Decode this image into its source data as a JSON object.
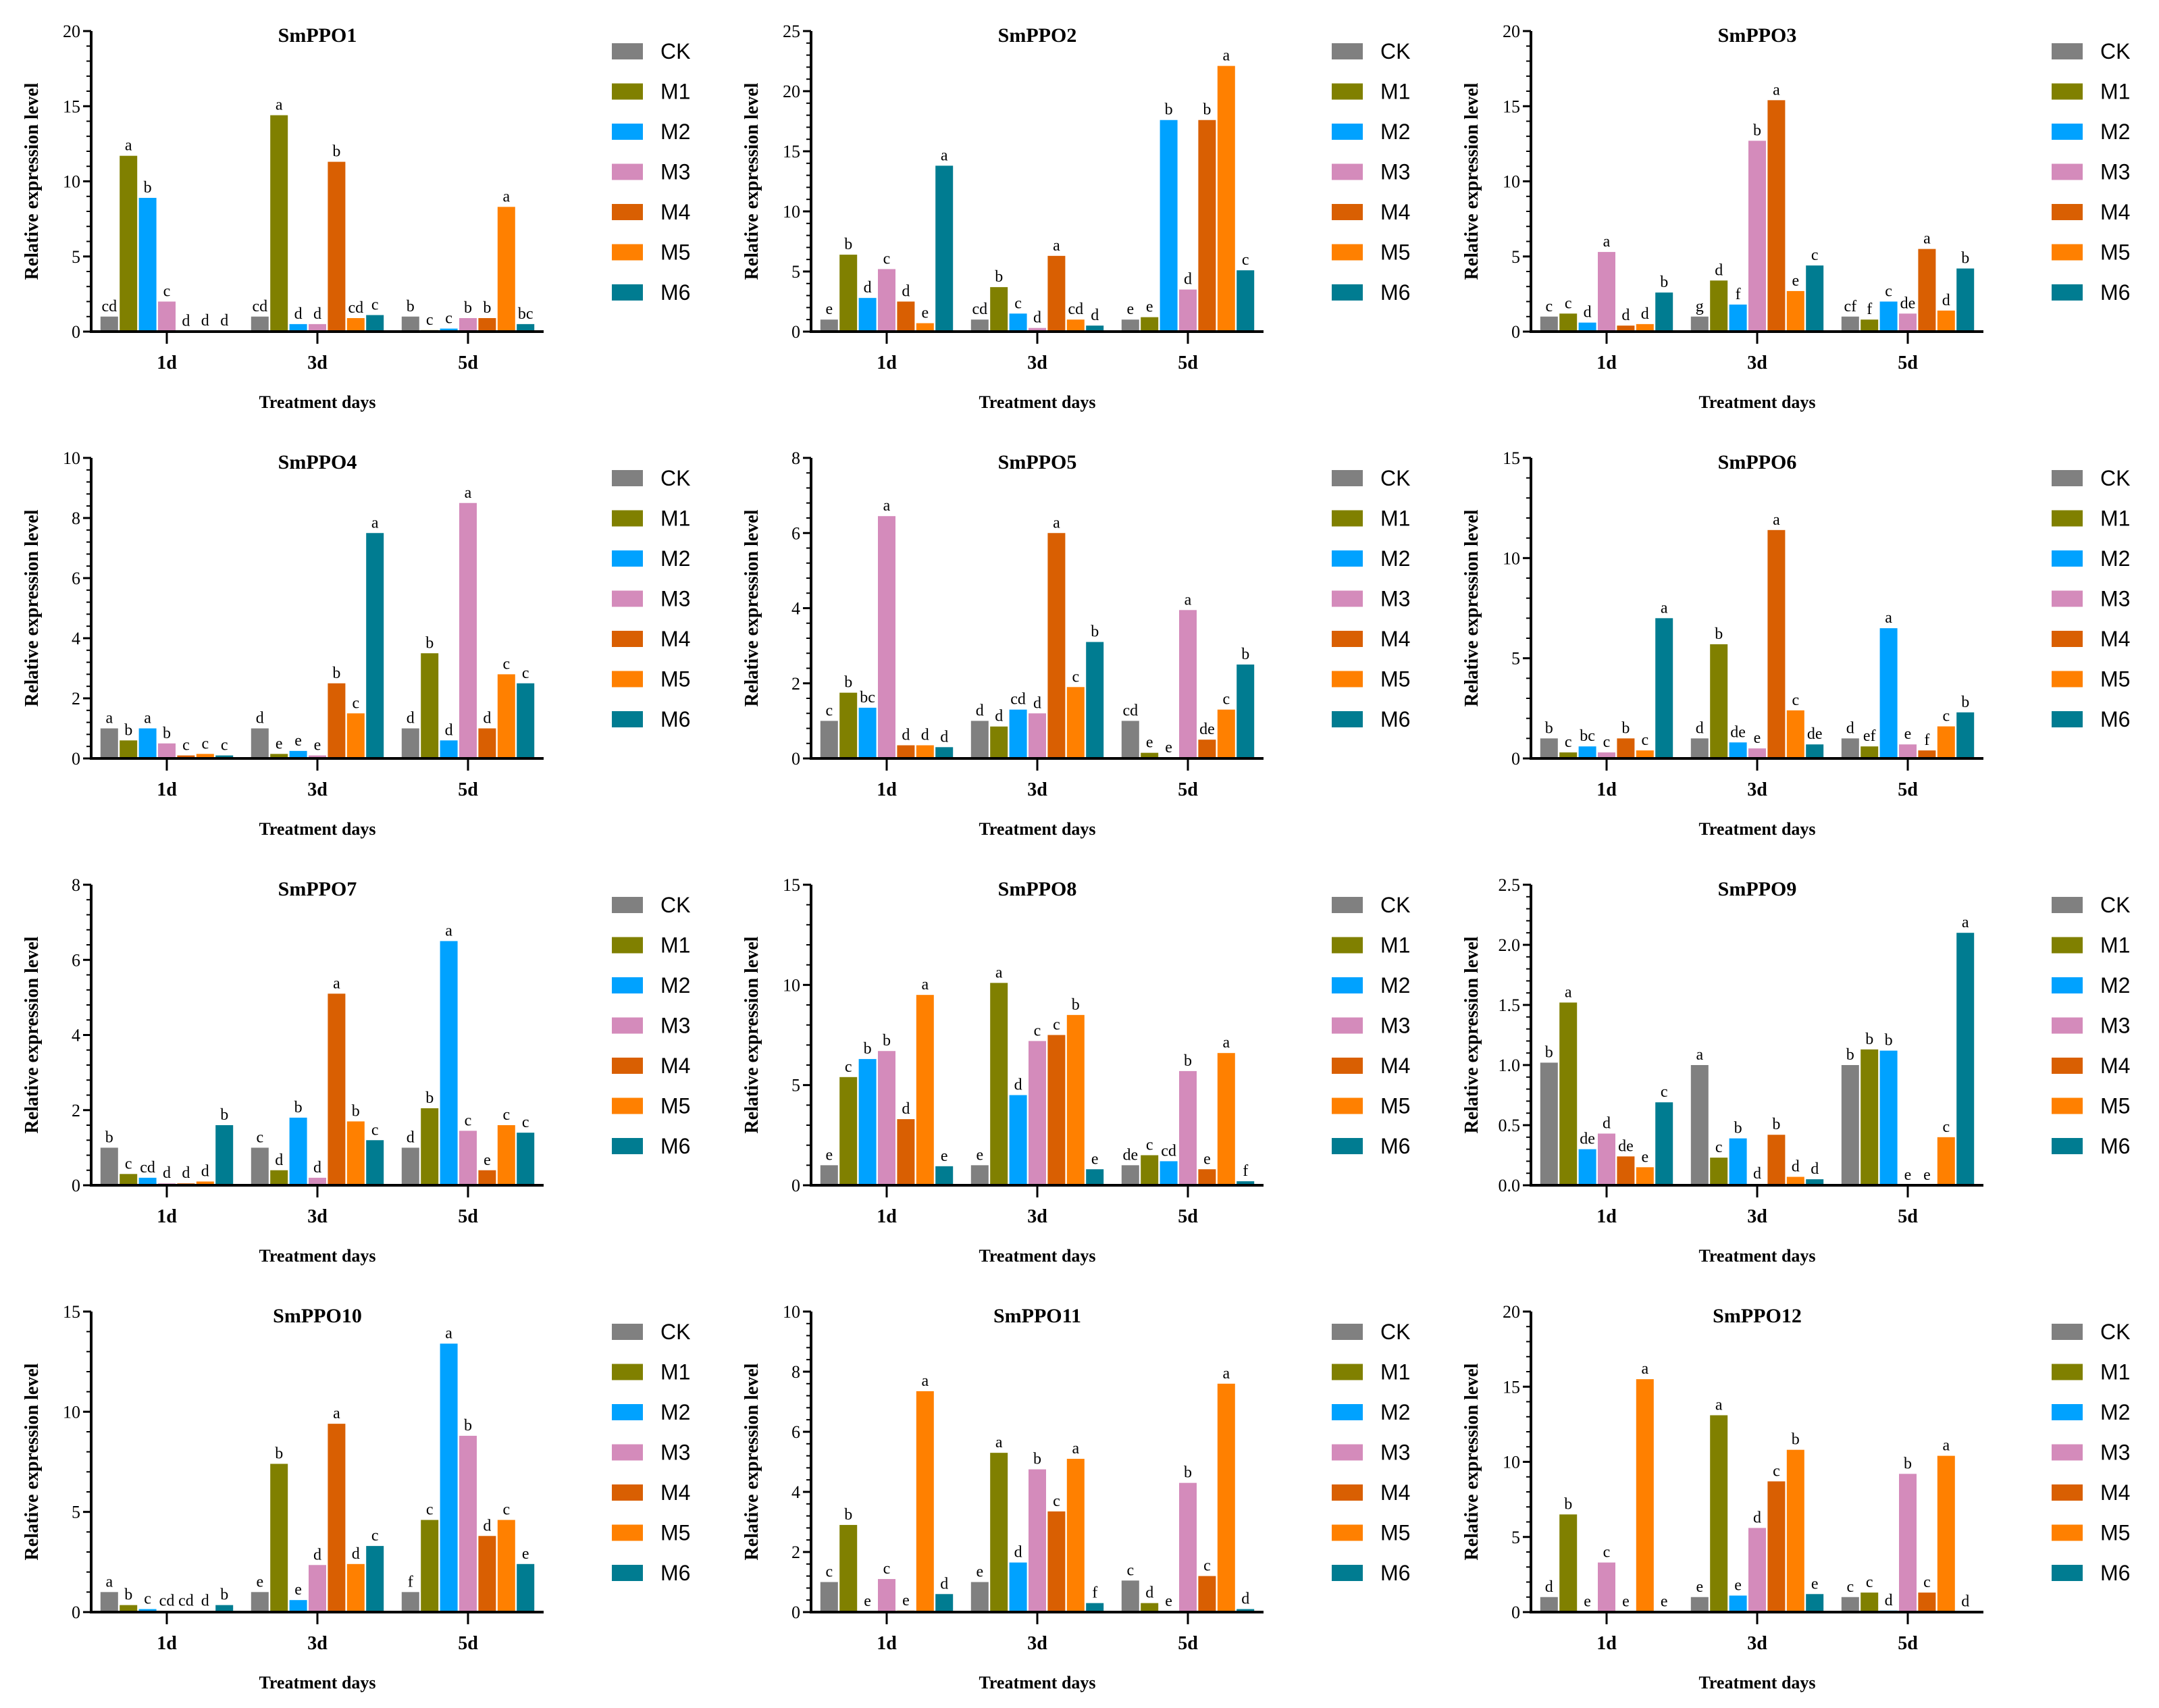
{
  "chart_data": {
    "type": "bar",
    "categories": [
      "1d",
      "3d",
      "5d"
    ],
    "series_names": [
      "CK",
      "M1",
      "M2",
      "M3",
      "M4",
      "M5",
      "M6"
    ],
    "colors": [
      "#808080",
      "#808000",
      "#00a2ff",
      "#d48bbb",
      "#d95f02",
      "#ff8000",
      "#007c91"
    ],
    "xlabel": "Treatment days",
    "ylabel": "Relative expression level",
    "panels": [
      {
        "title": "SmPPO1",
        "ylim": [
          0,
          20
        ],
        "ystep": 5,
        "values": [
          [
            1,
            11.7,
            8.9,
            2.0,
            0.02,
            0.05,
            0.05
          ],
          [
            1,
            14.4,
            0.5,
            0.5,
            11.3,
            0.9,
            1.1
          ],
          [
            1,
            0.1,
            0.2,
            0.9,
            0.9,
            8.3,
            0.5
          ]
        ],
        "letters": [
          [
            "cd",
            "a",
            "b",
            "c",
            "d",
            "d",
            "d"
          ],
          [
            "cd",
            "a",
            "d",
            "d",
            "b",
            "cd",
            "c"
          ],
          [
            "b",
            "c",
            "c",
            "b",
            "b",
            "a",
            "bc"
          ]
        ]
      },
      {
        "title": "SmPPO2",
        "ylim": [
          0,
          25
        ],
        "ystep": 5,
        "values": [
          [
            1,
            6.4,
            2.8,
            5.2,
            2.5,
            0.7,
            13.8
          ],
          [
            1,
            3.7,
            1.5,
            0.3,
            6.3,
            1.0,
            0.5
          ],
          [
            1,
            1.2,
            17.6,
            3.5,
            17.6,
            22.1,
            5.1
          ]
        ],
        "letters": [
          [
            "e",
            "b",
            "d",
            "c",
            "d",
            "e",
            "a"
          ],
          [
            "cd",
            "b",
            "c",
            "d",
            "a",
            "cd",
            "d"
          ],
          [
            "e",
            "e",
            "b",
            "d",
            "b",
            "a",
            "c"
          ]
        ]
      },
      {
        "title": "SmPPO3",
        "ylim": [
          0,
          20
        ],
        "ystep": 5,
        "values": [
          [
            1,
            1.2,
            0.6,
            5.3,
            0.4,
            0.5,
            2.6
          ],
          [
            1,
            3.4,
            1.8,
            12.7,
            15.4,
            2.7,
            4.4
          ],
          [
            1,
            0.8,
            2.0,
            1.2,
            5.5,
            1.4,
            4.2
          ]
        ],
        "letters": [
          [
            "c",
            "c",
            "d",
            "a",
            "d",
            "d",
            "b"
          ],
          [
            "g",
            "d",
            "f",
            "b",
            "a",
            "e",
            "c"
          ],
          [
            "cf",
            "f",
            "c",
            "de",
            "a",
            "d",
            "b"
          ]
        ]
      },
      {
        "title": "SmPPO4",
        "ylim": [
          0,
          10
        ],
        "ystep": 2,
        "values": [
          [
            1,
            0.6,
            1.0,
            0.5,
            0.1,
            0.15,
            0.1
          ],
          [
            1,
            0.15,
            0.25,
            0.1,
            2.5,
            1.5,
            7.5
          ],
          [
            1,
            3.5,
            0.6,
            8.5,
            1.0,
            2.8,
            2.5
          ]
        ],
        "letters": [
          [
            "a",
            "b",
            "a",
            "b",
            "c",
            "c",
            "c"
          ],
          [
            "d",
            "e",
            "e",
            "e",
            "b",
            "c",
            "a"
          ],
          [
            "d",
            "b",
            "d",
            "a",
            "d",
            "c",
            "c"
          ]
        ]
      },
      {
        "title": "SmPPO5",
        "ylim": [
          0,
          8
        ],
        "ystep": 2,
        "values": [
          [
            1,
            1.75,
            1.35,
            6.45,
            0.35,
            0.35,
            0.3
          ],
          [
            1,
            0.85,
            1.3,
            1.2,
            6.0,
            1.9,
            3.1
          ],
          [
            1,
            0.15,
            0.02,
            3.95,
            0.5,
            1.3,
            2.5
          ]
        ],
        "letters": [
          [
            "c",
            "b",
            "bc",
            "a",
            "d",
            "d",
            "d"
          ],
          [
            "d",
            "d",
            "cd",
            "d",
            "a",
            "c",
            "b"
          ],
          [
            "cd",
            "e",
            "e",
            "a",
            "de",
            "c",
            "b"
          ]
        ]
      },
      {
        "title": "SmPPO6",
        "ylim": [
          0,
          15
        ],
        "ystep": 5,
        "values": [
          [
            1,
            0.3,
            0.6,
            0.3,
            1.0,
            0.4,
            7.0
          ],
          [
            1,
            5.7,
            0.8,
            0.5,
            11.4,
            2.4,
            0.7
          ],
          [
            1,
            0.6,
            6.5,
            0.7,
            0.4,
            1.6,
            2.3
          ]
        ],
        "letters": [
          [
            "b",
            "c",
            "bc",
            "c",
            "b",
            "c",
            "a"
          ],
          [
            "d",
            "b",
            "de",
            "e",
            "a",
            "c",
            "de"
          ],
          [
            "d",
            "ef",
            "a",
            "e",
            "f",
            "c",
            "b"
          ]
        ]
      },
      {
        "title": "SmPPO7",
        "ylim": [
          0,
          8
        ],
        "ystep": 2,
        "values": [
          [
            1,
            0.3,
            0.2,
            0.05,
            0.05,
            0.1,
            1.6
          ],
          [
            1,
            0.4,
            1.8,
            0.2,
            5.1,
            1.7,
            1.2
          ],
          [
            1,
            2.05,
            6.5,
            1.45,
            0.4,
            1.6,
            1.4
          ]
        ],
        "letters": [
          [
            "b",
            "c",
            "cd",
            "d",
            "d",
            "d",
            "b"
          ],
          [
            "c",
            "d",
            "b",
            "d",
            "a",
            "b",
            "c"
          ],
          [
            "d",
            "b",
            "a",
            "c",
            "e",
            "c",
            "c"
          ]
        ]
      },
      {
        "title": "SmPPO8",
        "ylim": [
          0,
          15
        ],
        "ystep": 5,
        "values": [
          [
            1,
            5.4,
            6.3,
            6.7,
            3.3,
            9.5,
            0.95
          ],
          [
            1,
            10.1,
            4.5,
            7.2,
            7.5,
            8.5,
            0.8
          ],
          [
            1,
            1.5,
            1.2,
            5.7,
            0.8,
            6.6,
            0.2
          ]
        ],
        "letters": [
          [
            "e",
            "c",
            "b",
            "b",
            "d",
            "a",
            "e"
          ],
          [
            "e",
            "a",
            "d",
            "c",
            "c",
            "b",
            "e"
          ],
          [
            "de",
            "c",
            "cd",
            "b",
            "e",
            "a",
            "f"
          ]
        ]
      },
      {
        "title": "SmPPO9",
        "ylim": [
          0,
          2.5
        ],
        "ystep": 0.5,
        "values": [
          [
            1.02,
            1.52,
            0.3,
            0.43,
            0.24,
            0.15,
            0.69
          ],
          [
            1.0,
            0.23,
            0.39,
            0.01,
            0.42,
            0.07,
            0.05
          ],
          [
            1.0,
            1.13,
            1.12,
            0.0,
            0.0,
            0.4,
            2.1
          ]
        ],
        "letters": [
          [
            "b",
            "a",
            "de",
            "d",
            "de",
            "e",
            "c"
          ],
          [
            "a",
            "c",
            "b",
            "d",
            "b",
            "d",
            "d"
          ],
          [
            "b",
            "b",
            "b",
            "e",
            "e",
            "c",
            "a"
          ]
        ]
      },
      {
        "title": "SmPPO10",
        "ylim": [
          0,
          15
        ],
        "ystep": 5,
        "values": [
          [
            1,
            0.35,
            0.15,
            0.05,
            0.05,
            0.05,
            0.35
          ],
          [
            1,
            7.4,
            0.6,
            2.35,
            9.4,
            2.4,
            3.3
          ],
          [
            1,
            4.6,
            13.4,
            8.8,
            3.8,
            4.6,
            2.4
          ]
        ],
        "letters": [
          [
            "a",
            "b",
            "c",
            "cd",
            "cd",
            "d",
            "b"
          ],
          [
            "e",
            "b",
            "e",
            "d",
            "a",
            "d",
            "c"
          ],
          [
            "f",
            "c",
            "a",
            "b",
            "d",
            "c",
            "e"
          ]
        ]
      },
      {
        "title": "SmPPO11",
        "ylim": [
          0,
          10
        ],
        "ystep": 2,
        "values": [
          [
            1,
            2.9,
            0.02,
            1.1,
            0.05,
            7.35,
            0.6
          ],
          [
            1,
            5.3,
            1.65,
            4.75,
            3.35,
            5.1,
            0.3
          ],
          [
            1.05,
            0.3,
            0.02,
            4.3,
            1.2,
            7.6,
            0.1
          ]
        ],
        "letters": [
          [
            "c",
            "b",
            "e",
            "c",
            "e",
            "a",
            "d"
          ],
          [
            "e",
            "a",
            "d",
            "b",
            "c",
            "a",
            "f"
          ],
          [
            "c",
            "d",
            "e",
            "b",
            "c",
            "a",
            "d"
          ]
        ]
      },
      {
        "title": "SmPPO12",
        "ylim": [
          0,
          20
        ],
        "ystep": 5,
        "values": [
          [
            1,
            6.5,
            0.02,
            3.3,
            0.02,
            15.5,
            0.02
          ],
          [
            1,
            13.1,
            1.1,
            5.6,
            8.7,
            10.8,
            1.2
          ],
          [
            1,
            1.3,
            0.1,
            9.2,
            1.3,
            10.4,
            0.02
          ]
        ],
        "letters": [
          [
            "d",
            "b",
            "e",
            "c",
            "e",
            "a",
            "e"
          ],
          [
            "e",
            "a",
            "e",
            "d",
            "c",
            "b",
            "e"
          ],
          [
            "c",
            "c",
            "d",
            "b",
            "c",
            "a",
            "d"
          ]
        ]
      }
    ]
  }
}
